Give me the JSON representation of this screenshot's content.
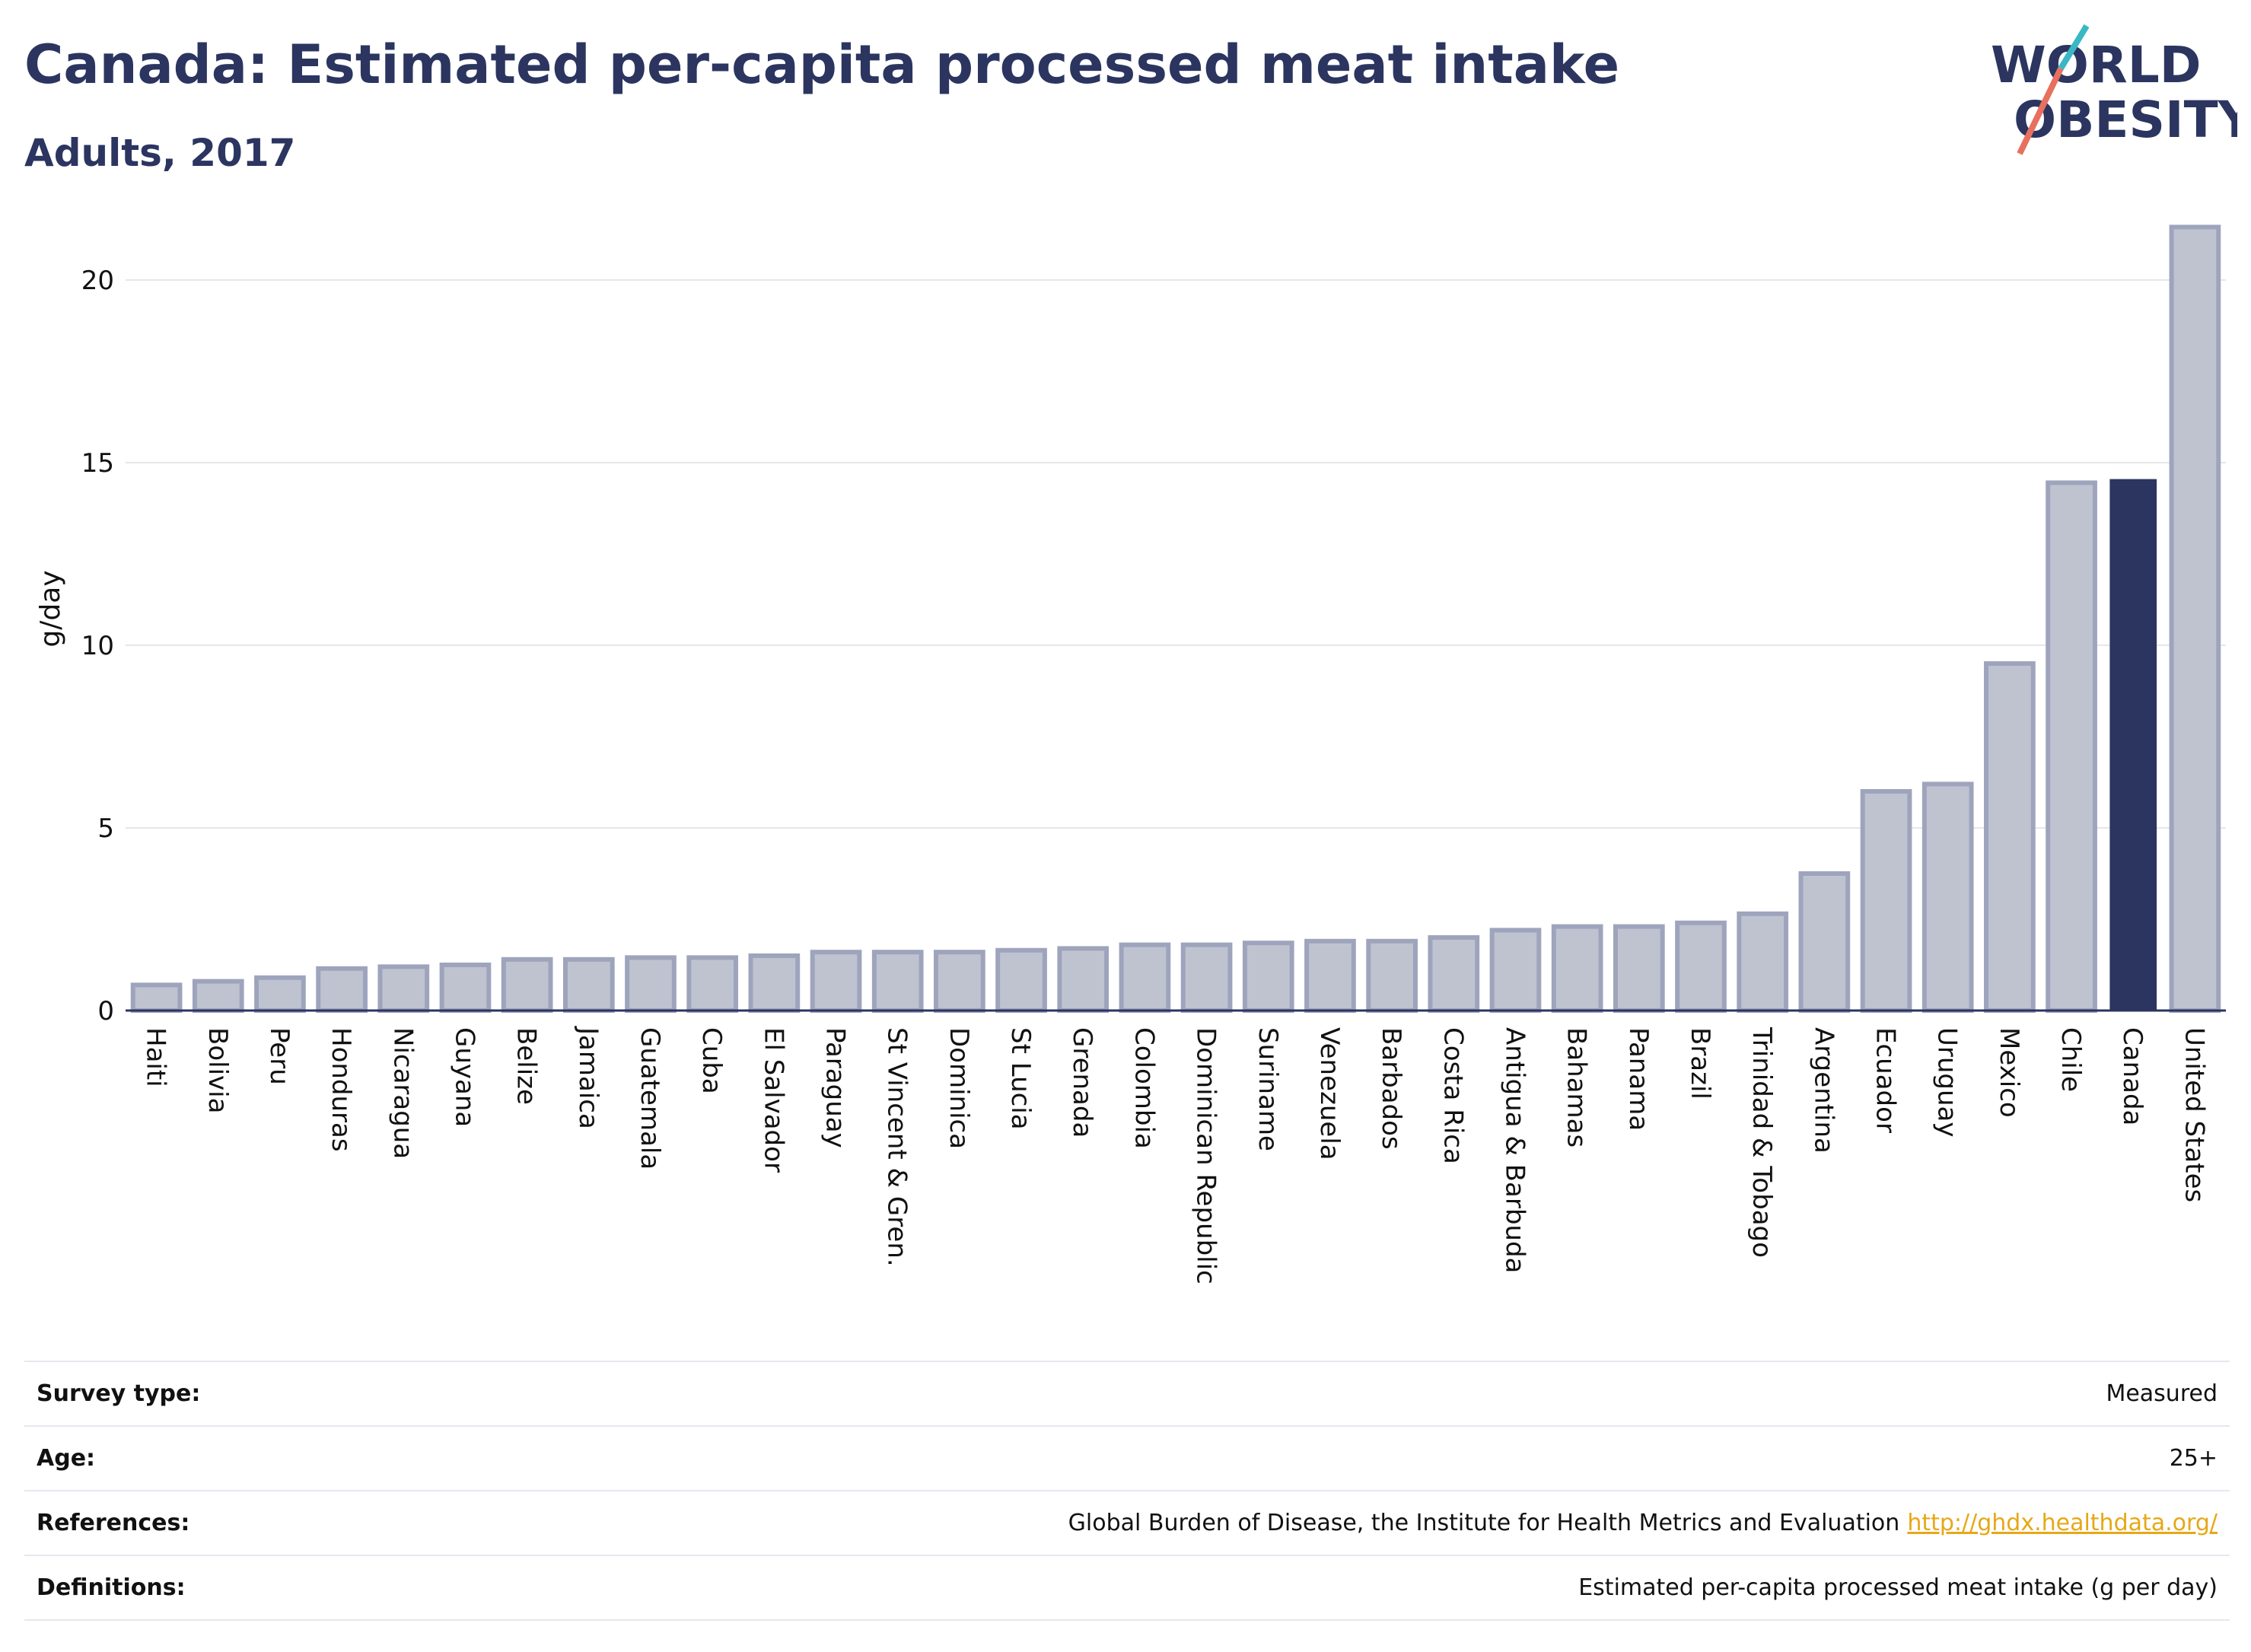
{
  "header": {
    "title": "Canada: Estimated per-capita processed meat intake",
    "subtitle": "Adults, 2017"
  },
  "logo": {
    "line1": "WORLD",
    "line2": "OBESITY",
    "accent_colors": [
      "#3ab7c4",
      "#e8705f"
    ]
  },
  "chart_data": {
    "type": "bar",
    "ylabel": "g/day",
    "ylim": [
      0,
      22
    ],
    "yticks": [
      0,
      5,
      10,
      15,
      20
    ],
    "grid": true,
    "highlight": "Canada",
    "colors": {
      "bar": "#bfc3d0",
      "bar_edge": "#9ea4bc",
      "highlight": "#2b3560"
    },
    "categories": [
      "Haiti",
      "Bolivia",
      "Peru",
      "Honduras",
      "Nicaragua",
      "Guyana",
      "Belize",
      "Jamaica",
      "Guatemala",
      "Cuba",
      "El Salvador",
      "Paraguay",
      "St Vincent & Gren.",
      "Dominica",
      "St Lucia",
      "Grenada",
      "Colombia",
      "Dominican Republic",
      "Suriname",
      "Venezuela",
      "Barbados",
      "Costa Rica",
      "Antigua & Barbuda",
      "Bahamas",
      "Panama",
      "Brazil",
      "Trinidad & Tobago",
      "Argentina",
      "Ecuador",
      "Uruguay",
      "Mexico",
      "Chile",
      "Canada",
      "United States"
    ],
    "values": [
      0.7,
      0.8,
      0.9,
      1.15,
      1.2,
      1.25,
      1.4,
      1.4,
      1.45,
      1.45,
      1.5,
      1.6,
      1.6,
      1.6,
      1.65,
      1.7,
      1.8,
      1.8,
      1.85,
      1.9,
      1.9,
      2.0,
      2.2,
      2.3,
      2.3,
      2.4,
      2.65,
      3.75,
      6.0,
      6.2,
      9.5,
      14.45,
      14.55,
      21.45
    ]
  },
  "info": {
    "rows": [
      {
        "key": "Survey type:",
        "value": "Measured"
      },
      {
        "key": "Age:",
        "value": "25+"
      },
      {
        "key": "References:",
        "value": "Global Burden of Disease, the Institute for Health Metrics and Evaluation",
        "link": "http://ghdx.healthdata.org/"
      },
      {
        "key": "Definitions:",
        "value": "Estimated per-capita processed meat intake (g per day)"
      }
    ]
  }
}
